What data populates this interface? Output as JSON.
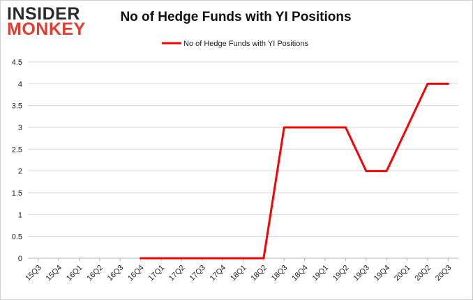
{
  "brand": {
    "line1": "INSIDER",
    "line2": "MONKEY"
  },
  "chart_data": {
    "type": "line",
    "title": "No of Hedge Funds with YI Positions",
    "xlabel": "",
    "ylabel": "",
    "ylim": [
      0,
      4.5
    ],
    "yticks": [
      "0",
      "0.5",
      "1",
      "1.5",
      "2",
      "2.5",
      "3",
      "3.5",
      "4",
      "4.5"
    ],
    "grid": true,
    "legend_position": "top-center",
    "categories": [
      "15Q3",
      "15Q4",
      "16Q1",
      "16Q2",
      "16Q3",
      "16Q4",
      "17Q1",
      "17Q2",
      "17Q3",
      "17Q4",
      "18Q1",
      "18Q2",
      "18Q3",
      "18Q4",
      "19Q1",
      "19Q2",
      "19Q3",
      "19Q4",
      "20Q1",
      "20Q2",
      "20Q3"
    ],
    "series": [
      {
        "name": "No of Hedge Funds with YI Positions",
        "color": "#ff0000",
        "values": [
          null,
          null,
          null,
          null,
          null,
          0,
          0,
          0,
          0,
          0,
          0,
          0,
          3,
          3,
          3,
          3,
          2,
          2,
          3,
          4,
          4
        ]
      }
    ]
  }
}
